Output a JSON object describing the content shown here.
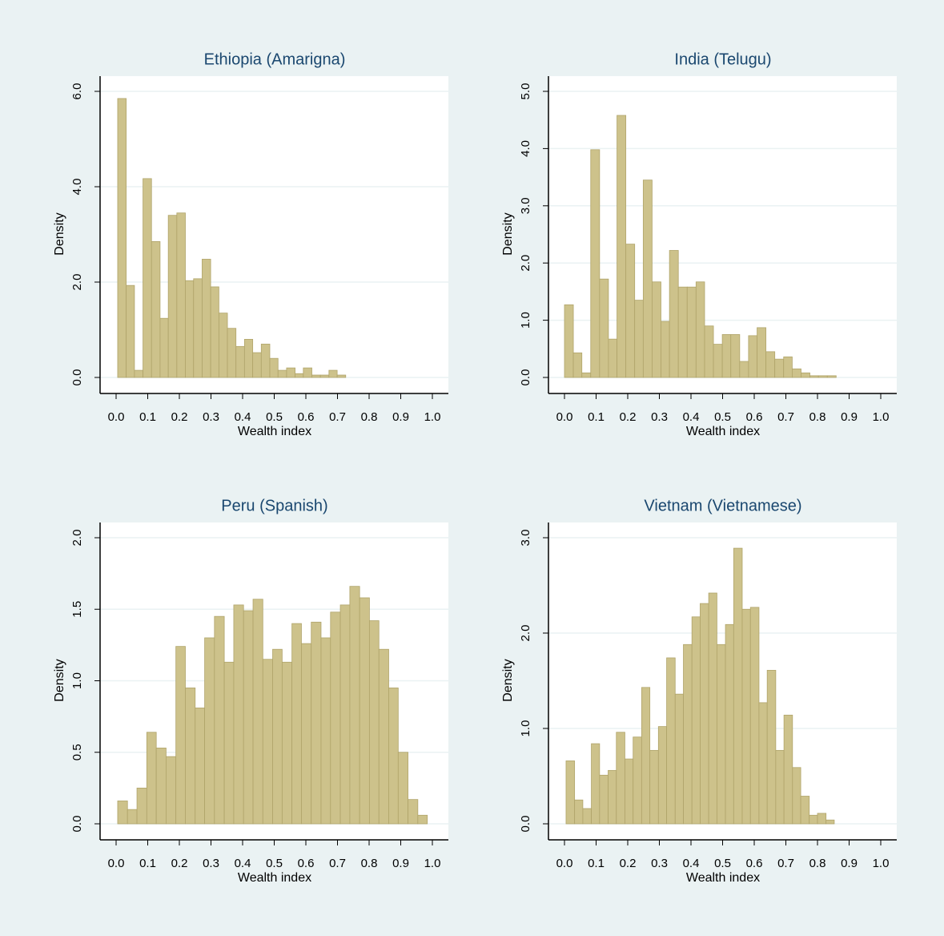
{
  "chart_data": [
    {
      "type": "histogram",
      "title": "Ethiopia (Amarigna)",
      "xlabel": "Wealth index",
      "ylabel": "Density",
      "bins": [
        0.005,
        0.032,
        0.058,
        0.085,
        0.112,
        0.139,
        0.165,
        0.192,
        0.219,
        0.245,
        0.272,
        0.299,
        0.325,
        0.352,
        0.379,
        0.406,
        0.432,
        0.459,
        0.486,
        0.512,
        0.539,
        0.566,
        0.592,
        0.619,
        0.646,
        0.673,
        0.699,
        0.726
      ],
      "values": [
        5.85,
        1.93,
        0.15,
        4.17,
        2.85,
        1.24,
        3.4,
        3.45,
        2.03,
        2.07,
        2.48,
        1.9,
        1.35,
        1.03,
        0.65,
        0.8,
        0.52,
        0.7,
        0.4,
        0.15,
        0.2,
        0.08,
        0.2,
        0.05,
        0.05,
        0.15,
        0.05
      ],
      "color": "#cdc28b",
      "edgecolor": "#b0a46a",
      "xlim": [
        0,
        1
      ],
      "xticks": [
        {
          "value": 0,
          "label": "0.0"
        },
        0.1,
        0.2,
        0.3,
        0.4,
        0.5,
        0.6,
        0.7,
        0.8,
        0.9,
        {
          "value": 1,
          "label": "1.0"
        }
      ],
      "ylim": [
        0,
        6
      ],
      "yticks": [
        {
          "value": 0,
          "label": "0.0"
        },
        {
          "value": 2,
          "label": "2.0"
        },
        {
          "value": 4,
          "label": "4.0"
        },
        {
          "value": 6,
          "label": "6.0"
        }
      ],
      "grid": true
    },
    {
      "type": "histogram",
      "title": "India (Telugu)",
      "xlabel": "Wealth index",
      "ylabel": "Density",
      "bins": [
        0,
        0.028,
        0.055,
        0.083,
        0.111,
        0.139,
        0.166,
        0.194,
        0.222,
        0.249,
        0.277,
        0.305,
        0.332,
        0.36,
        0.388,
        0.416,
        0.443,
        0.471,
        0.499,
        0.526,
        0.554,
        0.582,
        0.609,
        0.637,
        0.665,
        0.693,
        0.72,
        0.748,
        0.776,
        0.803,
        0.831,
        0.859
      ],
      "values": [
        1.27,
        0.43,
        0.08,
        3.98,
        1.72,
        0.67,
        4.58,
        2.33,
        1.35,
        3.45,
        1.67,
        0.98,
        2.22,
        1.58,
        1.58,
        1.67,
        0.9,
        0.58,
        0.75,
        0.75,
        0.28,
        0.73,
        0.87,
        0.45,
        0.32,
        0.36,
        0.15,
        0.08,
        0.03,
        0.03,
        0.03
      ],
      "color": "#cdc28b",
      "edgecolor": "#b0a46a",
      "xlim": [
        0,
        1
      ],
      "xticks": [
        {
          "value": 0,
          "label": "0.0"
        },
        0.1,
        0.2,
        0.3,
        0.4,
        0.5,
        0.6,
        0.7,
        0.8,
        0.9,
        {
          "value": 1,
          "label": "1.0"
        }
      ],
      "ylim": [
        0,
        5
      ],
      "yticks": [
        {
          "value": 0,
          "label": "0.0"
        },
        {
          "value": 1,
          "label": "1.0"
        },
        {
          "value": 2,
          "label": "2.0"
        },
        {
          "value": 3,
          "label": "3.0"
        },
        {
          "value": 4,
          "label": "4.0"
        },
        {
          "value": 5,
          "label": "5.0"
        }
      ],
      "grid": true
    },
    {
      "type": "histogram",
      "title": "Peru (Spanish)",
      "xlabel": "Wealth index",
      "ylabel": "Density",
      "bins": [
        0.005,
        0.036,
        0.066,
        0.097,
        0.127,
        0.158,
        0.189,
        0.219,
        0.25,
        0.28,
        0.311,
        0.342,
        0.372,
        0.403,
        0.433,
        0.464,
        0.495,
        0.525,
        0.556,
        0.586,
        0.617,
        0.648,
        0.678,
        0.709,
        0.739,
        0.77,
        0.801,
        0.831,
        0.862,
        0.892,
        0.923,
        0.954,
        0.984
      ],
      "values": [
        0.16,
        0.1,
        0.25,
        0.64,
        0.53,
        0.47,
        1.24,
        0.95,
        0.81,
        1.3,
        1.45,
        1.13,
        1.53,
        1.49,
        1.57,
        1.15,
        1.22,
        1.13,
        1.4,
        1.26,
        1.41,
        1.3,
        1.48,
        1.53,
        1.66,
        1.58,
        1.42,
        1.22,
        0.95,
        0.5,
        0.17,
        0.06
      ],
      "color": "#cdc28b",
      "edgecolor": "#b0a46a",
      "xlim": [
        0,
        1
      ],
      "xticks": [
        {
          "value": 0,
          "label": "0.0"
        },
        0.1,
        0.2,
        0.3,
        0.4,
        0.5,
        0.6,
        0.7,
        0.8,
        0.9,
        {
          "value": 1,
          "label": "1.0"
        }
      ],
      "ylim": [
        0,
        2
      ],
      "yticks": [
        {
          "value": 0,
          "label": "0.0"
        },
        0.5,
        {
          "value": 1,
          "label": "1.0"
        },
        1.5,
        {
          "value": 2,
          "label": "2.0"
        }
      ],
      "grid": true
    },
    {
      "type": "histogram",
      "title": "Vietnam (Vietnamese)",
      "xlabel": "Wealth index",
      "ylabel": "Density",
      "bins": [
        0.005,
        0.032,
        0.058,
        0.085,
        0.111,
        0.138,
        0.164,
        0.191,
        0.217,
        0.244,
        0.27,
        0.297,
        0.323,
        0.35,
        0.376,
        0.403,
        0.429,
        0.456,
        0.482,
        0.509,
        0.535,
        0.562,
        0.588,
        0.615,
        0.641,
        0.668,
        0.694,
        0.721,
        0.747,
        0.774,
        0.8,
        0.827,
        0.853
      ],
      "values": [
        0.66,
        0.25,
        0.16,
        0.84,
        0.51,
        0.56,
        0.96,
        0.68,
        0.91,
        1.43,
        0.77,
        1.02,
        1.74,
        1.36,
        1.88,
        2.17,
        2.31,
        2.42,
        1.88,
        2.09,
        2.89,
        2.25,
        2.27,
        1.27,
        1.61,
        0.77,
        1.14,
        0.59,
        0.29,
        0.09,
        0.11,
        0.04
      ],
      "color": "#cdc28b",
      "edgecolor": "#b0a46a",
      "xlim": [
        0,
        1
      ],
      "xticks": [
        {
          "value": 0,
          "label": "0.0"
        },
        0.1,
        0.2,
        0.3,
        0.4,
        0.5,
        0.6,
        0.7,
        0.8,
        0.9,
        {
          "value": 1,
          "label": "1.0"
        }
      ],
      "ylim": [
        0,
        3
      ],
      "yticks": [
        {
          "value": 0,
          "label": "0.0"
        },
        {
          "value": 1,
          "label": "1.0"
        },
        {
          "value": 2,
          "label": "2.0"
        },
        {
          "value": 3,
          "label": "3.0"
        }
      ],
      "grid": true
    }
  ]
}
